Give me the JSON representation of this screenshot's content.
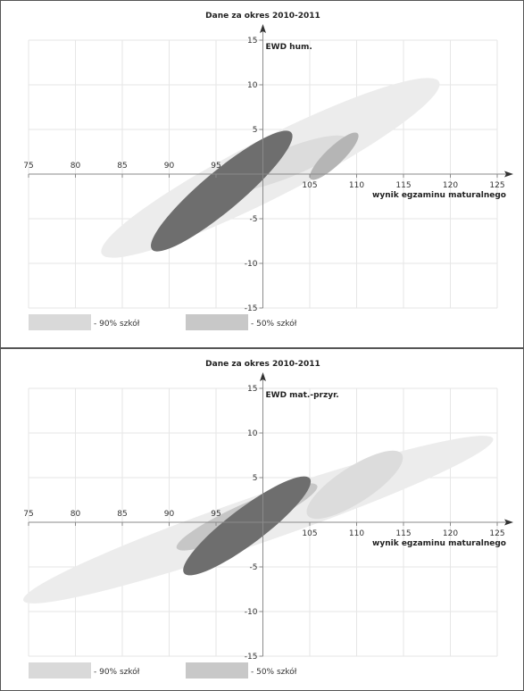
{
  "chart_data": [
    {
      "type": "scatter",
      "title": "Dane za okres 2010-2011",
      "series_label": "EWD hum.",
      "xlabel": "wynik egzaminu maturalnego",
      "ylabel": "",
      "xlim": [
        75,
        125
      ],
      "ylim": [
        -15,
        15
      ],
      "x_ticks": [
        75,
        80,
        85,
        90,
        95,
        105,
        110,
        115,
        120,
        125
      ],
      "y_ticks": [
        15,
        10,
        5,
        -5,
        -10,
        -15
      ],
      "grid": true,
      "legend": [
        {
          "label": "- 90% szkół",
          "color": "#d9d9d9"
        },
        {
          "label": "- 50% szkół",
          "color": "#c8c8c8"
        }
      ],
      "ellipses": [
        {
          "cx": 100.8,
          "cy": 0.7,
          "rx": 20.2,
          "ry": 3.3,
          "angle": 27,
          "color": "#ececec"
        },
        {
          "cx": 102.5,
          "cy": 1.2,
          "rx": 7.0,
          "ry": 1.6,
          "angle": 22,
          "color": "#dcdcdc"
        },
        {
          "cx": 107.6,
          "cy": 2.0,
          "rx": 3.5,
          "ry": 1.0,
          "angle": 44,
          "color": "#b5b5b5"
        },
        {
          "cx": 95.6,
          "cy": -1.9,
          "rx": 9.7,
          "ry": 2.2,
          "angle": 40,
          "color": "#6e6e6e"
        }
      ]
    },
    {
      "type": "scatter",
      "title": "Dane za okres 2010-2011",
      "series_label": "EWD mat.-przyr.",
      "xlabel": "wynik egzaminu maturalnego",
      "ylabel": "",
      "xlim": [
        75,
        125
      ],
      "ylim": [
        -15,
        15
      ],
      "x_ticks": [
        75,
        80,
        85,
        90,
        95,
        105,
        110,
        115,
        120,
        125
      ],
      "y_ticks": [
        15,
        10,
        5,
        -5,
        -10,
        -15
      ],
      "grid": true,
      "legend": [
        {
          "label": "- 90% szkół",
          "color": "#d9d9d9"
        },
        {
          "label": "- 50% szkół",
          "color": "#c8c8c8"
        }
      ],
      "ellipses": [
        {
          "cx": 99.5,
          "cy": 0.3,
          "rx": 26.5,
          "ry": 2.6,
          "angle": 19,
          "color": "#ececec"
        },
        {
          "cx": 109.8,
          "cy": 4.2,
          "rx": 6.0,
          "ry": 2.0,
          "angle": 33,
          "color": "#dcdcdc"
        },
        {
          "cx": 98.3,
          "cy": 0.6,
          "rx": 8.2,
          "ry": 1.5,
          "angle": 24,
          "color": "#c6c6c6"
        },
        {
          "cx": 98.3,
          "cy": -0.4,
          "rx": 8.4,
          "ry": 2.0,
          "angle": 37,
          "color": "#6e6e6e"
        }
      ]
    }
  ]
}
